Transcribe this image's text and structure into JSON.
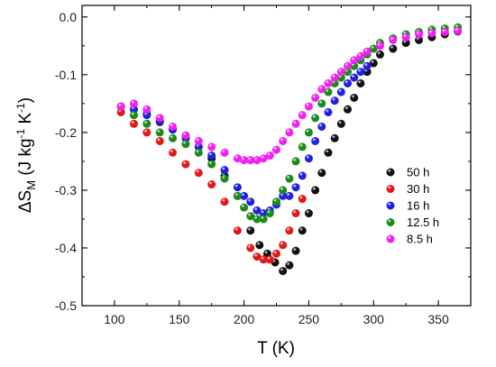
{
  "chart_data": {
    "type": "scatter",
    "xlabel": "T (K)",
    "ylabel": "ΔS_M (J kg^-1 K^-1)",
    "ylabel_parts": {
      "main": "ΔS",
      "sub": "M",
      "open": " (J kg",
      "exp1": "-1",
      "mid": " K",
      "exp2": "-1",
      "close": ")"
    },
    "xlim": [
      75,
      375
    ],
    "ylim": [
      -0.5,
      0.02
    ],
    "x_ticks": [
      100,
      150,
      200,
      250,
      300,
      350
    ],
    "y_ticks": [
      0.0,
      -0.1,
      -0.2,
      -0.3,
      -0.4,
      -0.5
    ],
    "x_tick_labels": [
      "100",
      "150",
      "200",
      "250",
      "300",
      "350"
    ],
    "y_tick_labels": [
      "0.0",
      "-0.1",
      "-0.2",
      "-0.3",
      "-0.4",
      "-0.5"
    ],
    "legend_position": "right",
    "grid": false,
    "series": [
      {
        "name": "50 h",
        "color": "#111111",
        "x": [
          105,
          115,
          125,
          135,
          145,
          155,
          165,
          175,
          185,
          195,
          205,
          212,
          218,
          224,
          230,
          235,
          240,
          245,
          250,
          255,
          260,
          265,
          270,
          275,
          280,
          285,
          290,
          295,
          300,
          305,
          315,
          325,
          335,
          345,
          355,
          365
        ],
        "y": [
          -0.155,
          -0.16,
          -0.168,
          -0.182,
          -0.195,
          -0.21,
          -0.225,
          -0.245,
          -0.275,
          -0.31,
          -0.37,
          -0.395,
          -0.41,
          -0.425,
          -0.44,
          -0.43,
          -0.405,
          -0.37,
          -0.34,
          -0.3,
          -0.27,
          -0.235,
          -0.21,
          -0.185,
          -0.16,
          -0.14,
          -0.115,
          -0.095,
          -0.08,
          -0.065,
          -0.055,
          -0.045,
          -0.04,
          -0.035,
          -0.03,
          -0.025
        ]
      },
      {
        "name": "30 h",
        "color": "#e01818",
        "x": [
          105,
          115,
          125,
          135,
          145,
          155,
          165,
          175,
          185,
          195,
          205,
          210,
          215,
          220,
          225,
          230,
          235,
          240,
          245
        ],
        "y": [
          -0.165,
          -0.185,
          -0.2,
          -0.215,
          -0.235,
          -0.255,
          -0.27,
          -0.29,
          -0.32,
          -0.37,
          -0.4,
          -0.415,
          -0.42,
          -0.42,
          -0.41,
          -0.395,
          -0.37,
          -0.34,
          -0.315
        ]
      },
      {
        "name": "16 h",
        "color": "#2020e0",
        "x": [
          105,
          115,
          125,
          135,
          145,
          155,
          165,
          175,
          185,
          195,
          200,
          205,
          210,
          215,
          220,
          225,
          230,
          235,
          240,
          245,
          250,
          255,
          260,
          265,
          270,
          275,
          280,
          285,
          290,
          295
        ],
        "y": [
          -0.155,
          -0.16,
          -0.17,
          -0.18,
          -0.195,
          -0.21,
          -0.225,
          -0.24,
          -0.265,
          -0.295,
          -0.31,
          -0.32,
          -0.335,
          -0.34,
          -0.335,
          -0.325,
          -0.31,
          -0.31,
          -0.295,
          -0.275,
          -0.245,
          -0.215,
          -0.19,
          -0.165,
          -0.145,
          -0.13,
          -0.115,
          -0.105,
          -0.095,
          -0.085
        ]
      },
      {
        "name": "12.5 h",
        "color": "#1a8a1a",
        "x": [
          105,
          115,
          125,
          135,
          145,
          155,
          165,
          175,
          185,
          195,
          200,
          205,
          210,
          215,
          220,
          225,
          230,
          235,
          240,
          245,
          250,
          255,
          260,
          265,
          270,
          275,
          280,
          285,
          290,
          295,
          300,
          305,
          315,
          325,
          335,
          345,
          355,
          365
        ],
        "y": [
          -0.155,
          -0.17,
          -0.185,
          -0.2,
          -0.21,
          -0.22,
          -0.235,
          -0.255,
          -0.28,
          -0.31,
          -0.33,
          -0.345,
          -0.35,
          -0.35,
          -0.34,
          -0.32,
          -0.3,
          -0.28,
          -0.25,
          -0.225,
          -0.2,
          -0.175,
          -0.15,
          -0.13,
          -0.115,
          -0.105,
          -0.095,
          -0.085,
          -0.075,
          -0.065,
          -0.055,
          -0.045,
          -0.037,
          -0.03,
          -0.026,
          -0.022,
          -0.02,
          -0.018
        ]
      },
      {
        "name": "8.5 h",
        "color": "#f020f0",
        "x": [
          105,
          115,
          125,
          135,
          145,
          155,
          165,
          175,
          185,
          195,
          200,
          205,
          210,
          215,
          220,
          225,
          230,
          235,
          240,
          245,
          250,
          255,
          260,
          265,
          270,
          275,
          280,
          285,
          290,
          295,
          305,
          315,
          325,
          335,
          345,
          355,
          365
        ],
        "y": [
          -0.155,
          -0.15,
          -0.16,
          -0.175,
          -0.19,
          -0.205,
          -0.215,
          -0.225,
          -0.235,
          -0.245,
          -0.248,
          -0.248,
          -0.248,
          -0.245,
          -0.24,
          -0.23,
          -0.215,
          -0.2,
          -0.185,
          -0.17,
          -0.155,
          -0.14,
          -0.125,
          -0.115,
          -0.105,
          -0.095,
          -0.085,
          -0.075,
          -0.068,
          -0.06,
          -0.05,
          -0.04,
          -0.035,
          -0.03,
          -0.028,
          -0.026,
          -0.024
        ]
      }
    ]
  }
}
